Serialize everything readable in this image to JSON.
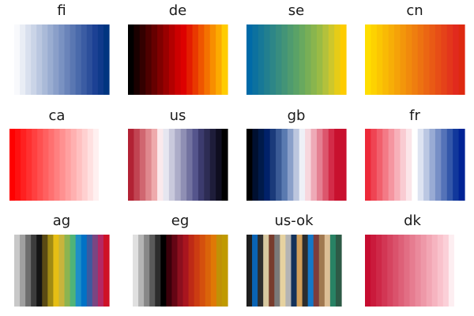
{
  "chart_data": [
    {
      "type": "heatmap",
      "title": "fi",
      "colors": [
        "#f8f9fc",
        "#e9edf5",
        "#d9e0ee",
        "#cad4e7",
        "#bac7e0",
        "#aabad8",
        "#9aadd1",
        "#8a9fc9",
        "#7a92c2",
        "#6a84ba",
        "#5a77b2",
        "#4a6aab",
        "#3b5ca3",
        "#2c4f9b",
        "#1c4194",
        "#0f3a8b",
        "#003580"
      ]
    },
    {
      "type": "heatmap",
      "title": "de",
      "colors": [
        "#000000",
        "#1a0000",
        "#330000",
        "#4d0000",
        "#660000",
        "#800000",
        "#990000",
        "#b30000",
        "#cc0000",
        "#dd0000",
        "#e31c00",
        "#e93800",
        "#ef5500",
        "#f47100",
        "#f88e00",
        "#fcaa00",
        "#ffcc00"
      ]
    },
    {
      "type": "heatmap",
      "title": "se",
      "colors": [
        "#006aa7",
        "#0c719f",
        "#177897",
        "#227f8f",
        "#2d8687",
        "#388d7f",
        "#439477",
        "#4f9b6f",
        "#5aa267",
        "#68a95f",
        "#78af56",
        "#89b54e",
        "#9abb45",
        "#b3c13c",
        "#cdc72c",
        "#e6cc17",
        "#fecc00"
      ]
    },
    {
      "type": "heatmap",
      "title": "cn",
      "colors": [
        "#ffde00",
        "#fdd201",
        "#fbc603",
        "#f9ba05",
        "#f7ae07",
        "#f5a209",
        "#f3960b",
        "#f18a0d",
        "#ef7e0f",
        "#ed7211",
        "#eb6613",
        "#e95a15",
        "#e74e17",
        "#e54219",
        "#e3361b",
        "#e12a1d",
        "#de2910"
      ]
    },
    {
      "type": "heatmap",
      "title": "ca",
      "colors": [
        "#ff0000",
        "#ff1010",
        "#ff2020",
        "#ff3030",
        "#ff4040",
        "#ff5050",
        "#ff6060",
        "#ff7070",
        "#ff8080",
        "#ff9090",
        "#ffa0a0",
        "#ffb0b0",
        "#ffc0c0",
        "#ffd0d0",
        "#ffe0e0",
        "#fff0f0",
        "#ffffff"
      ]
    },
    {
      "type": "heatmap",
      "title": "us",
      "colors": [
        "#b22234",
        "#c14452",
        "#d06670",
        "#df888e",
        "#eeaaac",
        "#fbe9ec",
        "#e6e6f0",
        "#c9c9dc",
        "#acacc8",
        "#8f8fb4",
        "#7272a0",
        "#55558c",
        "#3c3b6e",
        "#2d2c54",
        "#1e1d3a",
        "#0f0e20",
        "#000000"
      ]
    },
    {
      "type": "heatmap",
      "title": "gb",
      "colors": [
        "#000000",
        "#001030",
        "#001a4a",
        "#012169",
        "#1a3a7a",
        "#3a5a95",
        "#5a7ab0",
        "#8a9fc9",
        "#bcc6de",
        "#eef0f7",
        "#f7d6dd",
        "#eeaab7",
        "#e58092",
        "#dc566d",
        "#d32b48",
        "#c8102e",
        "#c8102e"
      ]
    },
    {
      "type": "heatmap",
      "title": "fr",
      "colors": [
        "#ed2939",
        "#ef4453",
        "#f15f6c",
        "#f37a86",
        "#f595a0",
        "#f7b0b9",
        "#f9cbd2",
        "#fbe5e9",
        "#ffffff",
        "#dde3f1",
        "#bbc7e2",
        "#99abd4",
        "#778fc6",
        "#5573b8",
        "#3357aa",
        "#11389c",
        "#002395"
      ]
    },
    {
      "type": "heatmap",
      "title": "ag",
      "colors": [
        "#c8c8c8",
        "#a0a0a0",
        "#6e6e6e",
        "#3c3c3c",
        "#141414",
        "#5a4a14",
        "#a08a14",
        "#e6be14",
        "#c8b43c",
        "#8cb450",
        "#50b478",
        "#1e90c8",
        "#0072c6",
        "#3c5aa0",
        "#7a4682",
        "#b42864",
        "#ce1126"
      ]
    },
    {
      "type": "heatmap",
      "title": "eg",
      "colors": [
        "#e0e0e0",
        "#b4b4b4",
        "#878787",
        "#5a5a5a",
        "#2d2d2d",
        "#000000",
        "#3b000a",
        "#640514",
        "#8c0f1e",
        "#a8151f",
        "#be2a16",
        "#cc3c12",
        "#d4500e",
        "#da640a",
        "#e07806",
        "#c09106",
        "#c09a00"
      ]
    },
    {
      "type": "heatmap",
      "title": "us-ok",
      "colors": [
        "#1e1e1e",
        "#0a64b4",
        "#2e2e2e",
        "#d7c8a0",
        "#783c2d",
        "#7a7a7a",
        "#e6d2a0",
        "#b4b4b4",
        "#14325a",
        "#d2a05a",
        "#2d2d2d",
        "#1478c8",
        "#7d3c3c",
        "#a07850",
        "#dcbe96",
        "#288264",
        "#2d5a46"
      ]
    },
    {
      "type": "heatmap",
      "title": "dk",
      "colors": [
        "#c60c30",
        "#ca1a3c",
        "#ce2848",
        "#d23654",
        "#d64460",
        "#da526c",
        "#de6078",
        "#e26e84",
        "#e67c90",
        "#ea8a9c",
        "#ee98a8",
        "#f2a6b4",
        "#f6b4c0",
        "#f9c2cc",
        "#fbd0d8",
        "#fdeef1",
        "#ffffff"
      ]
    }
  ]
}
